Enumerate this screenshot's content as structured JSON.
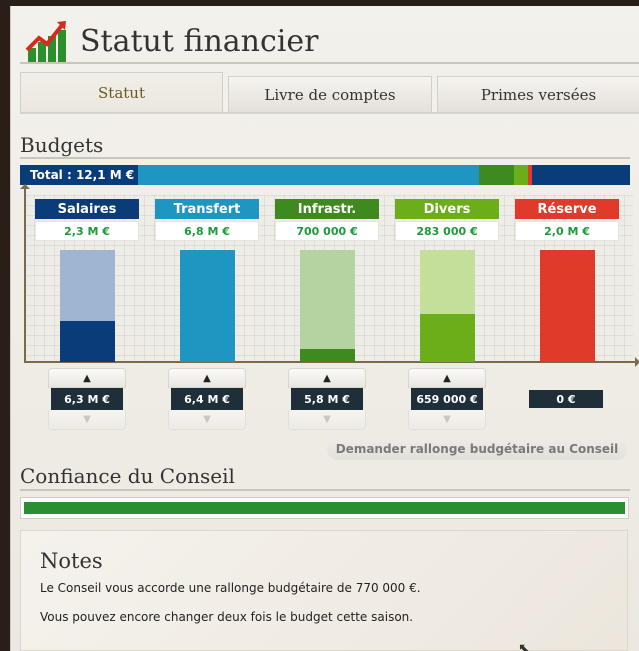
{
  "header": {
    "title": "Statut financier",
    "icon": "chart-up-icon"
  },
  "tabs": [
    {
      "label": "Statut",
      "active": true
    },
    {
      "label": "Livre de comptes",
      "active": false
    },
    {
      "label": "Primes versées",
      "active": false
    }
  ],
  "budgets": {
    "title": "Budgets",
    "total_label": "Total : 12,1 M €",
    "categories": [
      {
        "name": "Salaires",
        "current": "2,3 M €",
        "allocated": "6,3 M €",
        "color": "#0b3c7a",
        "light": "#9fb5d2",
        "fill_fraction": 0.37
      },
      {
        "name": "Transfert",
        "current": "6,8 M €",
        "allocated": "6,4 M €",
        "color": "#1f95c2",
        "light": "#1f95c2",
        "fill_fraction": 1.0
      },
      {
        "name": "Infrastr.",
        "current": "700 000 €",
        "allocated": "5,8 M €",
        "color": "#3f8a1f",
        "light": "#b5d3a0",
        "fill_fraction": 0.12
      },
      {
        "name": "Divers",
        "current": "283 000 €",
        "allocated": "659 000 €",
        "color": "#6cad1a",
        "light": "#c3df9a",
        "fill_fraction": 0.43
      },
      {
        "name": "Réserve",
        "current": "2,0 M €",
        "allocated": "0 €",
        "color": "#e03a2a",
        "light": "#e03a2a",
        "fill_fraction": 1.0
      }
    ],
    "request_button": "Demander rallonge budgétaire au Conseil"
  },
  "confidence": {
    "title": "Confiance du Conseil",
    "level": 1.0,
    "color": "#2a8f33"
  },
  "notes": {
    "title": "Notes",
    "lines": [
      "Le Conseil vous accorde une rallonge budgétaire de 770 000 €.",
      "Vous pouvez encore changer deux fois le budget cette saison."
    ]
  }
}
